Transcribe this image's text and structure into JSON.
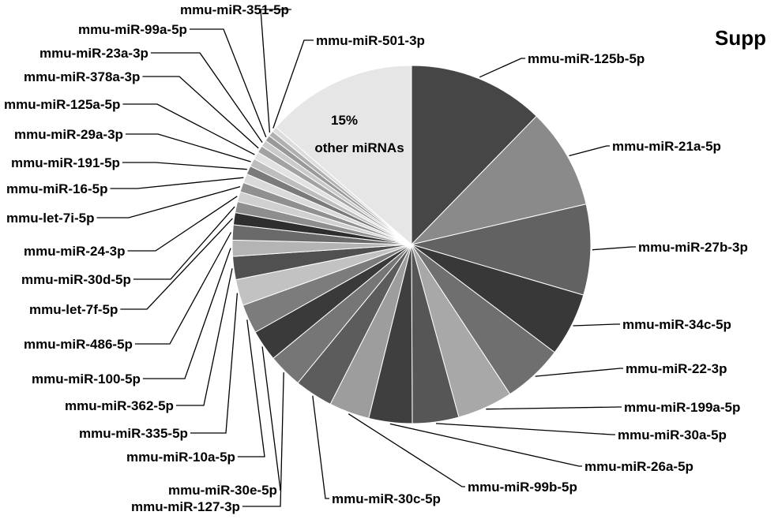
{
  "chart_data": {
    "type": "pie",
    "title": "Supp",
    "center_label": {
      "percent": "15%",
      "text": "other miRNAs"
    },
    "slices": [
      {
        "label": "mmu-miR-125b-5p",
        "value": 13.5,
        "color": "#464646"
      },
      {
        "label": "mmu-miR-21a-5p",
        "value": 10.0,
        "color": "#8a8a8a"
      },
      {
        "label": "mmu-miR-27b-3p",
        "value": 9.0,
        "color": "#626262"
      },
      {
        "label": "mmu-miR-34c-5p",
        "value": 6.3,
        "color": "#383838"
      },
      {
        "label": "mmu-miR-22-3p",
        "value": 6.0,
        "color": "#6f6f6f"
      },
      {
        "label": "mmu-miR-199a-5p",
        "value": 5.5,
        "color": "#a8a8a8"
      },
      {
        "label": "mmu-miR-30a-5p",
        "value": 4.6,
        "color": "#565656"
      },
      {
        "label": "mmu-miR-26a-5p",
        "value": 4.3,
        "color": "#3f3f3f"
      },
      {
        "label": "mmu-miR-99b-5p",
        "value": 4.0,
        "color": "#9d9d9d"
      },
      {
        "label": "mmu-miR-30c-5p",
        "value": 3.8,
        "color": "#5c5c5c"
      },
      {
        "label": "mmu-miR-127-3p",
        "value": 3.4,
        "color": "#767676"
      },
      {
        "label": "mmu-miR-30e-5p",
        "value": 3.1,
        "color": "#3a3a3a"
      },
      {
        "label": "mmu-miR-10a-5p",
        "value": 2.9,
        "color": "#7c7c7c"
      },
      {
        "label": "mmu-miR-335-5p",
        "value": 2.6,
        "color": "#c2c2c2"
      },
      {
        "label": "mmu-miR-362-5p",
        "value": 2.3,
        "color": "#505050"
      },
      {
        "label": "mmu-miR-100-5p",
        "value": 1.6,
        "color": "#b4b4b4"
      },
      {
        "label": "mmu-miR-486-5p",
        "value": 1.5,
        "color": "#6a6a6a"
      },
      {
        "label": "mmu-let-7f-5p",
        "value": 1.2,
        "color": "#2e2e2e"
      },
      {
        "label": "mmu-miR-30d-5p",
        "value": 1.1,
        "color": "#8e8e8e"
      },
      {
        "label": "mmu-miR-24-3p",
        "value": 1.0,
        "color": "#d0d0d0"
      },
      {
        "label": "mmu-let-7i-5p",
        "value": 0.95,
        "color": "#909090"
      },
      {
        "label": "mmu-miR-16-5p",
        "value": 0.9,
        "color": "#dadada"
      },
      {
        "label": "mmu-miR-191-5p",
        "value": 0.85,
        "color": "#7a7a7a"
      },
      {
        "label": "mmu-miR-29a-3p",
        "value": 0.8,
        "color": "#bdbdbd"
      },
      {
        "label": "mmu-miR-125a-5p",
        "value": 0.75,
        "color": "#e2e2e2"
      },
      {
        "label": "mmu-miR-378a-3p",
        "value": 0.7,
        "color": "#a2a2a2"
      },
      {
        "label": "mmu-miR-23a-3p",
        "value": 0.65,
        "color": "#cacaca"
      },
      {
        "label": "mmu-miR-99a-5p",
        "value": 0.6,
        "color": "#999999"
      },
      {
        "label": "mmu-miR-351-5p",
        "value": 0.55,
        "color": "#b0b0b0"
      },
      {
        "label": "mmu-miR-501-3p",
        "value": 0.5,
        "color": "#dcdcdc"
      },
      {
        "label": "other miRNAs",
        "value": 15.0,
        "color": "#e6e6e6"
      }
    ]
  }
}
